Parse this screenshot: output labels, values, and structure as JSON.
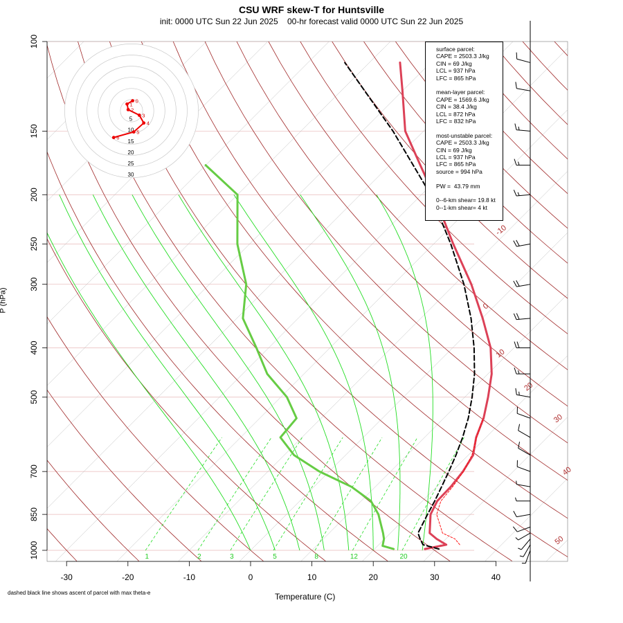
{
  "chart_data": {
    "type": "line",
    "title": "CSU WRF skew-T for Huntsville",
    "subtitle": "init: 0000 UTC Sun 22 Jun 2025    00-hr forecast valid 0000 UTC Sun 22 Jun 2025",
    "xlabel": "Temperature (C)",
    "ylabel": "P (hPa)",
    "x_ticks": [
      -30,
      -20,
      -10,
      0,
      10,
      20,
      30,
      40
    ],
    "y_ticks": [
      100,
      150,
      200,
      250,
      300,
      400,
      500,
      700,
      850,
      1000
    ],
    "footnote": "dashed black line shows ascent of parcel with max theta-e",
    "isotherm_labels": [
      "-10",
      "0",
      "10",
      "20",
      "30",
      "40",
      "50"
    ],
    "mixing_ratio_labels": [
      "1",
      "2",
      "3",
      "5",
      "8",
      "12",
      "20"
    ],
    "series": [
      {
        "name": "temperature",
        "color": "#dc4157",
        "points": [
          [
            994,
            28.2
          ],
          [
            975,
            31.0
          ],
          [
            950,
            28.5
          ],
          [
            925,
            26.4
          ],
          [
            850,
            23.5
          ],
          [
            800,
            22.4
          ],
          [
            750,
            22.3
          ],
          [
            700,
            21.8
          ],
          [
            650,
            20.8
          ],
          [
            600,
            18.4
          ],
          [
            550,
            16.5
          ],
          [
            500,
            13.8
          ],
          [
            450,
            10.6
          ],
          [
            400,
            6.2
          ],
          [
            350,
            0.1
          ],
          [
            300,
            -7.3
          ],
          [
            250,
            -16.8
          ],
          [
            200,
            -28.0
          ],
          [
            175,
            -35.0
          ],
          [
            150,
            -43.0
          ],
          [
            125,
            -50.0
          ],
          [
            110,
            -55.0
          ]
        ]
      },
      {
        "name": "dew point",
        "color": "#66cc44",
        "points": [
          [
            994,
            23.1
          ],
          [
            980,
            20.8
          ],
          [
            950,
            19.9
          ],
          [
            925,
            18.8
          ],
          [
            850,
            15.0
          ],
          [
            800,
            11.6
          ],
          [
            750,
            6.1
          ],
          [
            700,
            -1.6
          ],
          [
            650,
            -8.4
          ],
          [
            600,
            -13.5
          ],
          [
            550,
            -14.0
          ],
          [
            500,
            -19.0
          ],
          [
            450,
            -26.0
          ],
          [
            400,
            -32.0
          ],
          [
            350,
            -39.0
          ],
          [
            300,
            -44.0
          ],
          [
            250,
            -52.0
          ],
          [
            200,
            -60.0
          ],
          [
            175,
            -70.0
          ]
        ]
      },
      {
        "name": "parcel ascent",
        "color": "#000000",
        "points": [
          [
            994,
            30.5
          ],
          [
            975,
            27.2
          ],
          [
            950,
            25.8
          ],
          [
            925,
            24.5
          ],
          [
            850,
            23.0
          ],
          [
            800,
            22.0
          ],
          [
            750,
            20.8
          ],
          [
            700,
            19.5
          ],
          [
            650,
            18.0
          ],
          [
            600,
            16.2
          ],
          [
            550,
            14.0
          ],
          [
            500,
            11.2
          ],
          [
            450,
            7.8
          ],
          [
            400,
            3.5
          ],
          [
            350,
            -1.8
          ],
          [
            300,
            -8.5
          ],
          [
            250,
            -17.2
          ],
          [
            200,
            -28.5
          ],
          [
            150,
            -45.0
          ],
          [
            110,
            -64.0
          ]
        ]
      },
      {
        "name": "virtual temperature",
        "color": "#ff0000",
        "points": [
          [
            975,
            33.2
          ],
          [
            950,
            31.5
          ],
          [
            925,
            28.5
          ],
          [
            850,
            24.5
          ],
          [
            800,
            23.0
          ],
          [
            750,
            22.6
          ],
          [
            700,
            21.9
          ],
          [
            650,
            20.6
          ],
          [
            600,
            18.5
          ],
          [
            550,
            16.4
          ]
        ]
      }
    ],
    "hodograph": {
      "ring_labels": [
        "5",
        "10",
        "15",
        "20",
        "25",
        "30"
      ],
      "point_labels": [
        "0",
        "1",
        "2",
        "3",
        "4",
        "5",
        "6"
      ],
      "points": [
        [
          0.5,
          4.5
        ],
        [
          -2.0,
          3.0
        ],
        [
          -1.5,
          0.5
        ],
        [
          3.5,
          -2.0
        ],
        [
          5.5,
          -5.5
        ],
        [
          1.0,
          -9.5
        ],
        [
          -8.0,
          -12.0
        ]
      ]
    },
    "wind_barbs": {
      "pressures": [
        1000,
        975,
        950,
        925,
        900,
        850,
        800,
        750,
        700,
        650,
        600,
        550,
        500,
        450,
        400,
        350,
        300,
        250,
        200,
        175,
        150,
        125,
        110
      ],
      "dir_deg": [
        200,
        210,
        220,
        240,
        250,
        260,
        270,
        280,
        290,
        300,
        300,
        290,
        280,
        270,
        270,
        265,
        260,
        260,
        265,
        270,
        275,
        280,
        285
      ],
      "speed_kt": [
        5,
        5,
        5,
        5,
        10,
        10,
        5,
        5,
        10,
        10,
        10,
        10,
        15,
        15,
        20,
        20,
        20,
        20,
        15,
        15,
        15,
        10,
        10
      ]
    }
  },
  "stats": {
    "surface": [
      "surface parcel:",
      "CAPE = 2503.3 J/kg",
      "CIN = 69 J/kg",
      "LCL = 937 hPa",
      "LFC = 865 hPa"
    ],
    "mixed": [
      "mean-layer parcel:",
      "CAPE = 1569.6 J/kg",
      "CIN = 38.4 J/kg",
      "LCL = 872 hPa",
      "LFC = 832 hPa"
    ],
    "unstable": [
      "most-unstable parcel:",
      "CAPE = 2503.3 J/kg",
      "CIN = 69 J/kg",
      "LCL = 937 hPa",
      "LFC = 865 hPa",
      "source = 994 hPa"
    ],
    "pw": "PW =  43.79 mm",
    "shear": [
      "0--6-km shear= 19.8 kt",
      "0--1-km shear= 4 kt"
    ]
  }
}
